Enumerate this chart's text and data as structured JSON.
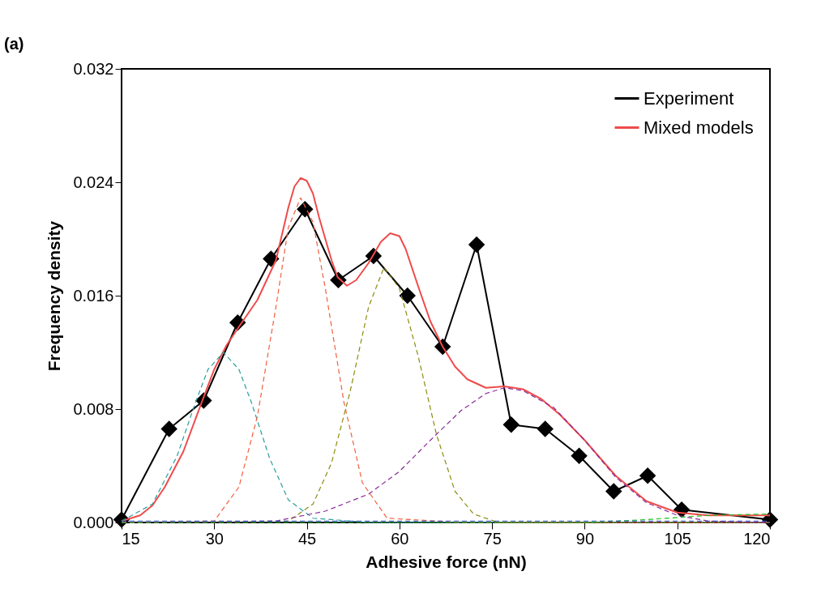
{
  "chart_data": {
    "type": "line",
    "xlabel": "Adhesive force (nN)",
    "ylabel": "Frequency density",
    "annotations": [
      "(a)"
    ],
    "xlim": [
      15,
      120
    ],
    "xticks": [
      15,
      30,
      45,
      60,
      75,
      90,
      105,
      120
    ],
    "ylim": [
      0,
      0.032
    ],
    "yticks": [
      {
        "value": 0,
        "label": "0.000"
      },
      0.008,
      0.016,
      0.024,
      0.032
    ],
    "grid": false,
    "legend": "top right",
    "series": [
      {
        "name": "Experiment",
        "color": "#000000",
        "marker": "diamond",
        "line_style": "solid",
        "x": [
          15,
          22.7,
          28.3,
          33.8,
          39.2,
          44.7,
          50.1,
          55.8,
          61.3,
          67.0,
          72.5,
          78.1,
          83.6,
          89.1,
          94.7,
          100.2,
          105.7,
          120
        ],
        "values": [
          0.0002,
          0.0066,
          0.0086,
          0.0141,
          0.0186,
          0.0221,
          0.0171,
          0.0188,
          0.016,
          0.0124,
          0.0196,
          0.0069,
          0.0066,
          0.0047,
          0.0022,
          0.0033,
          0.0009,
          0.0002
        ]
      },
      {
        "name": "Mixed models",
        "color": "#ef4b4b",
        "marker": "none",
        "line_style": "solid",
        "x": [
          15,
          18,
          20,
          22,
          25,
          28,
          30,
          32,
          34,
          37,
          40,
          42,
          43,
          44,
          45,
          46,
          47,
          49,
          50,
          51.5,
          53,
          55,
          57,
          58.5,
          60,
          61,
          63,
          65,
          67,
          69,
          71,
          74,
          77,
          80,
          83,
          86,
          90,
          95,
          100,
          105,
          110,
          120
        ],
        "values": [
          0.0001,
          0.0005,
          0.0012,
          0.0025,
          0.005,
          0.0085,
          0.0108,
          0.0125,
          0.0138,
          0.0157,
          0.0185,
          0.0222,
          0.0237,
          0.0243,
          0.0241,
          0.0232,
          0.0215,
          0.0185,
          0.0173,
          0.0167,
          0.0171,
          0.0183,
          0.0198,
          0.0204,
          0.0202,
          0.0193,
          0.0167,
          0.0142,
          0.0124,
          0.011,
          0.0101,
          0.0095,
          0.0096,
          0.0094,
          0.0087,
          0.0076,
          0.0058,
          0.0033,
          0.0015,
          0.0007,
          0.0005,
          0.0005
        ]
      },
      {
        "color": "#2a9d9d",
        "marker": "none",
        "line_style": "dashed",
        "x": [
          15,
          20,
          24,
          27,
          29,
          31.5,
          34,
          36,
          39,
          42,
          46,
          55,
          120
        ],
        "values": [
          0.0001,
          0.0013,
          0.0047,
          0.0085,
          0.0108,
          0.012,
          0.0108,
          0.0085,
          0.0045,
          0.0016,
          0.0003,
          0,
          0
        ]
      },
      {
        "color": "#f06040",
        "marker": "none",
        "line_style": "dashed",
        "x": [
          15,
          30,
          34,
          37,
          40,
          42,
          44,
          46,
          48,
          51,
          54,
          58,
          70,
          120
        ],
        "values": [
          0,
          0.0001,
          0.0025,
          0.0075,
          0.0152,
          0.0208,
          0.0229,
          0.0212,
          0.0165,
          0.0085,
          0.0028,
          0.0003,
          0,
          0
        ]
      },
      {
        "color": "#8c8c10",
        "marker": "none",
        "line_style": "dashed",
        "x": [
          15,
          42,
          46,
          49,
          52,
          55,
          57.5,
          60,
          63,
          66,
          69,
          72,
          76,
          120
        ],
        "values": [
          0,
          0.0001,
          0.0013,
          0.0042,
          0.0092,
          0.0152,
          0.018,
          0.0165,
          0.0118,
          0.0062,
          0.0022,
          0.0006,
          0,
          0
        ]
      },
      {
        "color": "#8a2a9a",
        "marker": "none",
        "line_style": "dashed",
        "x": [
          15,
          40,
          48,
          55,
          60,
          65,
          70,
          74,
          77,
          80,
          85,
          90,
          95,
          100,
          105,
          110,
          120
        ],
        "values": [
          0,
          0.0001,
          0.0008,
          0.002,
          0.0036,
          0.0058,
          0.0079,
          0.0091,
          0.0095,
          0.0093,
          0.0081,
          0.0058,
          0.0032,
          0.0014,
          0.0005,
          0.0001,
          0
        ]
      },
      {
        "color": "#20c020",
        "marker": "none",
        "line_style": "dashed",
        "x": [
          15,
          90,
          100,
          110,
          120
        ],
        "values": [
          0,
          0,
          0.0002,
          0.0005,
          0.0006
        ]
      },
      {
        "color": "#3050d0",
        "marker": "none",
        "line_style": "dashed",
        "x": [
          15,
          120
        ],
        "values": [
          0.0001,
          0.0001
        ]
      }
    ]
  }
}
